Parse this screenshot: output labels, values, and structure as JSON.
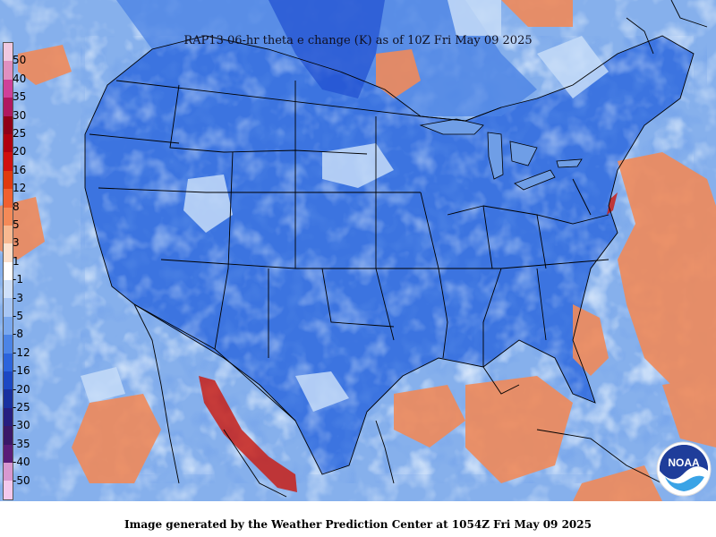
{
  "title": "RAP13 06-hr theta e change (K) as of 10Z Fri May 09 2025",
  "footer": "Image generated by the Weather Prediction Center at 1054Z Fri May 09 2025",
  "logo": {
    "text": "NOAA",
    "icon": "noaa-logo-icon"
  },
  "colorbar": {
    "labels": [
      "50",
      "40",
      "35",
      "30",
      "25",
      "20",
      "16",
      "12",
      "8",
      "5",
      "3",
      "1",
      "-1",
      "-3",
      "-5",
      "-8",
      "-12",
      "-16",
      "-20",
      "-25",
      "-30",
      "-35",
      "-40",
      "-50"
    ],
    "colors": [
      "#f0c8e0",
      "#e090c0",
      "#d0409a",
      "#b01860",
      "#900018",
      "#b00010",
      "#d01010",
      "#e03a10",
      "#f06030",
      "#f48a58",
      "#f8b890",
      "#fce0cc",
      "#ffffff",
      "#cfe0fa",
      "#a8c6f4",
      "#7aa8ee",
      "#4c84e6",
      "#2c64dc",
      "#1c48c4",
      "#1830a0",
      "#261e80",
      "#3a1868",
      "#5a1c78",
      "#d898d0",
      "#f4c8ec"
    ]
  },
  "colors": {
    "water_bg": "#6f9ee6",
    "land_bg": "#3c74e0",
    "warm": "#f08a5a",
    "hot": "#c01818",
    "pale": "#c6dcf8",
    "border": "#000000"
  }
}
